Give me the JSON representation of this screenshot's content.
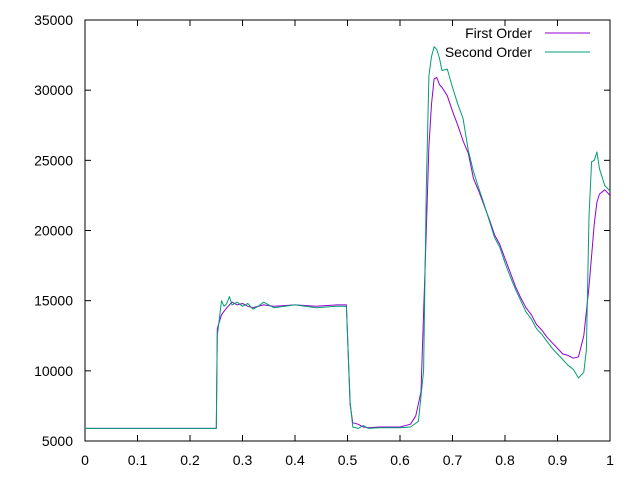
{
  "chart_data": {
    "type": "line",
    "title": "",
    "xlabel": "",
    "ylabel": "",
    "xlim": [
      0,
      1
    ],
    "ylim": [
      5000,
      35000
    ],
    "grid": false,
    "legend_placement": "top-right",
    "x_ticks": [
      "0",
      "0.1",
      "0.2",
      "0.3",
      "0.4",
      "0.5",
      "0.6",
      "0.7",
      "0.8",
      "0.9",
      "1"
    ],
    "y_ticks": [
      "5000",
      "10000",
      "15000",
      "20000",
      "25000",
      "30000",
      "35000"
    ],
    "series": [
      {
        "name": "First Order",
        "color": "#9400d3",
        "points": [
          [
            0.0,
            5900
          ],
          [
            0.25,
            5900
          ],
          [
            0.252,
            13000
          ],
          [
            0.26,
            14000
          ],
          [
            0.27,
            14500
          ],
          [
            0.28,
            14900
          ],
          [
            0.29,
            14700
          ],
          [
            0.3,
            14800
          ],
          [
            0.31,
            14600
          ],
          [
            0.32,
            14500
          ],
          [
            0.34,
            14700
          ],
          [
            0.36,
            14600
          ],
          [
            0.4,
            14700
          ],
          [
            0.44,
            14600
          ],
          [
            0.48,
            14700
          ],
          [
            0.498,
            14700
          ],
          [
            0.505,
            7600
          ],
          [
            0.51,
            6300
          ],
          [
            0.52,
            6200
          ],
          [
            0.53,
            6000
          ],
          [
            0.54,
            5950
          ],
          [
            0.56,
            6000
          ],
          [
            0.6,
            6000
          ],
          [
            0.62,
            6200
          ],
          [
            0.63,
            6800
          ],
          [
            0.64,
            8500
          ],
          [
            0.65,
            20000
          ],
          [
            0.655,
            26000
          ],
          [
            0.66,
            29000
          ],
          [
            0.665,
            30800
          ],
          [
            0.67,
            30900
          ],
          [
            0.675,
            30400
          ],
          [
            0.68,
            30200
          ],
          [
            0.69,
            29600
          ],
          [
            0.7,
            28500
          ],
          [
            0.71,
            27500
          ],
          [
            0.72,
            26400
          ],
          [
            0.73,
            25500
          ],
          [
            0.74,
            23700
          ],
          [
            0.75,
            22800
          ],
          [
            0.76,
            21800
          ],
          [
            0.77,
            20800
          ],
          [
            0.78,
            19700
          ],
          [
            0.79,
            19000
          ],
          [
            0.8,
            18000
          ],
          [
            0.81,
            17000
          ],
          [
            0.82,
            16000
          ],
          [
            0.83,
            15200
          ],
          [
            0.84,
            14500
          ],
          [
            0.85,
            14000
          ],
          [
            0.86,
            13300
          ],
          [
            0.87,
            12900
          ],
          [
            0.88,
            12400
          ],
          [
            0.89,
            12000
          ],
          [
            0.9,
            11600
          ],
          [
            0.91,
            11200
          ],
          [
            0.92,
            11100
          ],
          [
            0.93,
            10900
          ],
          [
            0.94,
            11000
          ],
          [
            0.95,
            12500
          ],
          [
            0.96,
            16000
          ],
          [
            0.965,
            18200
          ],
          [
            0.97,
            20500
          ],
          [
            0.975,
            22000
          ],
          [
            0.98,
            22600
          ],
          [
            0.99,
            22900
          ],
          [
            1.0,
            22500
          ]
        ]
      },
      {
        "name": "Second Order",
        "color": "#009e73",
        "points": [
          [
            0.0,
            5900
          ],
          [
            0.25,
            5900
          ],
          [
            0.252,
            12500
          ],
          [
            0.26,
            15000
          ],
          [
            0.265,
            14600
          ],
          [
            0.27,
            14800
          ],
          [
            0.275,
            15300
          ],
          [
            0.28,
            14700
          ],
          [
            0.29,
            14900
          ],
          [
            0.3,
            14600
          ],
          [
            0.31,
            14800
          ],
          [
            0.32,
            14400
          ],
          [
            0.33,
            14600
          ],
          [
            0.34,
            14900
          ],
          [
            0.36,
            14500
          ],
          [
            0.4,
            14700
          ],
          [
            0.44,
            14500
          ],
          [
            0.48,
            14600
          ],
          [
            0.498,
            14600
          ],
          [
            0.505,
            7800
          ],
          [
            0.51,
            6000
          ],
          [
            0.52,
            5900
          ],
          [
            0.53,
            6100
          ],
          [
            0.54,
            5900
          ],
          [
            0.56,
            5950
          ],
          [
            0.6,
            5950
          ],
          [
            0.62,
            6000
          ],
          [
            0.635,
            6400
          ],
          [
            0.645,
            10000
          ],
          [
            0.65,
            23000
          ],
          [
            0.655,
            31000
          ],
          [
            0.66,
            32400
          ],
          [
            0.665,
            33100
          ],
          [
            0.67,
            32900
          ],
          [
            0.675,
            32300
          ],
          [
            0.68,
            31400
          ],
          [
            0.69,
            31500
          ],
          [
            0.7,
            30200
          ],
          [
            0.71,
            29000
          ],
          [
            0.72,
            28000
          ],
          [
            0.73,
            25700
          ],
          [
            0.74,
            24200
          ],
          [
            0.75,
            23000
          ],
          [
            0.76,
            21900
          ],
          [
            0.77,
            20700
          ],
          [
            0.78,
            19500
          ],
          [
            0.79,
            18800
          ],
          [
            0.8,
            17700
          ],
          [
            0.81,
            16700
          ],
          [
            0.82,
            15800
          ],
          [
            0.83,
            15000
          ],
          [
            0.84,
            14200
          ],
          [
            0.85,
            13700
          ],
          [
            0.86,
            13000
          ],
          [
            0.87,
            12600
          ],
          [
            0.88,
            12100
          ],
          [
            0.89,
            11600
          ],
          [
            0.9,
            11200
          ],
          [
            0.91,
            10800
          ],
          [
            0.92,
            10400
          ],
          [
            0.93,
            10100
          ],
          [
            0.94,
            9500
          ],
          [
            0.95,
            9900
          ],
          [
            0.955,
            11500
          ],
          [
            0.96,
            21000
          ],
          [
            0.965,
            24900
          ],
          [
            0.97,
            25000
          ],
          [
            0.975,
            25600
          ],
          [
            0.98,
            24400
          ],
          [
            0.99,
            23200
          ],
          [
            1.0,
            22800
          ]
        ]
      }
    ]
  }
}
